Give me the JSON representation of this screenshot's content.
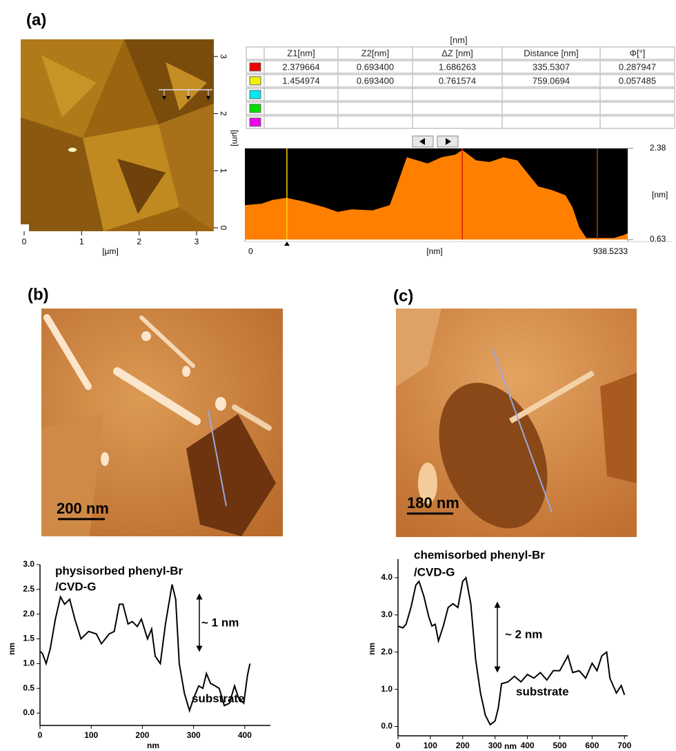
{
  "panels": {
    "a": "(a)",
    "b": "(b)",
    "c": "(c)"
  },
  "afm_image_a": {
    "xlim": [
      0,
      3.3
    ],
    "ylim": [
      0,
      3.3
    ],
    "xticks": [
      0,
      1,
      2,
      3
    ],
    "yticks": [
      0,
      1,
      2,
      3
    ],
    "xlabel": "[μm]",
    "ylabel": "[μm]"
  },
  "table": {
    "unit": "[nm]",
    "headers": [
      "Z1[nm]",
      "Z2[nm]",
      "ΔZ [nm]",
      "Distance [nm]",
      "Φ[°]"
    ],
    "rows": [
      [
        "2.379664",
        "0.693400",
        "1.686263",
        "335.5307",
        "0.287947"
      ],
      [
        "1.454974",
        "0.693400",
        "0.761574",
        "759.0694",
        "0.057485"
      ]
    ],
    "row_colors": [
      "#ee0000",
      "#f0f000",
      "#00e8f0",
      "#00dd00",
      "#ee00ee"
    ]
  },
  "images": {
    "b": {
      "scale_bar": "200 nm"
    },
    "c": {
      "scale_bar": "180 nm"
    }
  },
  "chart_data": [
    {
      "type": "area",
      "background": "#000000",
      "color": "#ff8000",
      "xlabel": "[nm]",
      "ylabel": "[nm]",
      "xlim": [
        0,
        938.5233
      ],
      "ylim": [
        0.63,
        2.38
      ],
      "xticks": [
        0,
        938.5233
      ],
      "yticks": [
        0.63,
        2.38
      ],
      "x": [
        0,
        42,
        68,
        102,
        144,
        195,
        228,
        262,
        313,
        355,
        372,
        397,
        423,
        448,
        482,
        516,
        533,
        567,
        600,
        634,
        668,
        685,
        719,
        753,
        786,
        803,
        820,
        837,
        871,
        905,
        930,
        938.5
      ],
      "values": [
        1.29,
        1.32,
        1.39,
        1.43,
        1.36,
        1.25,
        1.16,
        1.21,
        1.19,
        1.29,
        1.65,
        2.21,
        2.15,
        2.09,
        2.21,
        2.26,
        2.35,
        2.15,
        2.12,
        2.21,
        2.15,
        1.98,
        1.65,
        1.58,
        1.48,
        1.25,
        0.86,
        0.66,
        0.66,
        0.66,
        0.72,
        0.75
      ],
      "cursors": [
        {
          "x": 103,
          "color": "#ffd000"
        },
        {
          "x": 533,
          "color": "#e02000"
        },
        {
          "x": 864,
          "color": "#a04010"
        }
      ]
    },
    {
      "type": "line",
      "color": "#000000",
      "xlabel": "nm",
      "ylabel": "nm",
      "annotations": [
        "physisorbed phenyl-Br",
        "/CVD-G",
        "~ 1 nm",
        "substrate"
      ],
      "xlim": [
        0,
        450
      ],
      "ylim": [
        -0.25,
        3.0
      ],
      "xticks": [
        0,
        100,
        200,
        300,
        400
      ],
      "yticks": [
        {
          "value": 0,
          "label": "0.0"
        },
        {
          "value": 0.5,
          "label": "0.5"
        },
        {
          "value": 1,
          "label": "1.0"
        },
        {
          "value": 1.5,
          "label": "1.5"
        },
        {
          "value": 2,
          "label": "2.0"
        },
        {
          "value": 2.5,
          "label": "2.5"
        },
        {
          "value": 3,
          "label": "3.0"
        }
      ],
      "x": [
        0,
        5,
        12,
        20,
        30,
        40,
        48,
        58,
        68,
        80,
        95,
        110,
        120,
        135,
        145,
        155,
        162,
        172,
        180,
        190,
        198,
        210,
        218,
        225,
        235,
        245,
        258,
        265,
        272,
        282,
        292,
        300,
        310,
        318,
        325,
        333,
        342,
        350,
        360,
        370,
        380,
        388,
        398,
        405,
        410
      ],
      "values": [
        1.25,
        1.2,
        1.0,
        1.3,
        1.9,
        2.35,
        2.2,
        2.3,
        1.9,
        1.5,
        1.65,
        1.6,
        1.4,
        1.6,
        1.65,
        2.2,
        2.2,
        1.8,
        1.85,
        1.75,
        1.9,
        1.5,
        1.7,
        1.15,
        1.0,
        1.8,
        2.6,
        2.3,
        1.0,
        0.4,
        0.05,
        0.3,
        0.55,
        0.5,
        0.8,
        0.6,
        0.55,
        0.5,
        0.15,
        0.2,
        0.55,
        0.3,
        0.2,
        0.75,
        1.0
      ]
    },
    {
      "type": "line",
      "color": "#000000",
      "xlabel": "nm",
      "ylabel": "nm",
      "annotations": [
        "chemisorbed phenyl-Br",
        "/CVD-G",
        "~ 2 nm",
        "substrate"
      ],
      "xlim": [
        0,
        710
      ],
      "ylim": [
        -0.25,
        4.5
      ],
      "xticks": [
        0,
        100,
        200,
        300,
        400,
        500,
        600,
        700
      ],
      "yticks": [
        {
          "value": 0,
          "label": "0.0"
        },
        {
          "value": 1,
          "label": "1.0"
        },
        {
          "value": 2,
          "label": "2.0"
        },
        {
          "value": 3,
          "label": "3.0"
        },
        {
          "value": 4,
          "label": "4.0"
        }
      ],
      "x": [
        0,
        15,
        25,
        40,
        55,
        65,
        80,
        95,
        105,
        115,
        125,
        140,
        155,
        170,
        185,
        200,
        210,
        225,
        240,
        255,
        270,
        285,
        300,
        310,
        320,
        340,
        360,
        380,
        400,
        420,
        440,
        460,
        480,
        500,
        525,
        540,
        560,
        580,
        600,
        615,
        630,
        645,
        655,
        665,
        675,
        690,
        700
      ],
      "values": [
        2.7,
        2.65,
        2.75,
        3.2,
        3.8,
        3.9,
        3.5,
        2.95,
        2.7,
        2.75,
        2.3,
        2.7,
        3.2,
        3.3,
        3.2,
        3.9,
        4.0,
        3.3,
        1.8,
        0.9,
        0.3,
        0.05,
        0.15,
        0.5,
        1.15,
        1.2,
        1.35,
        1.2,
        1.4,
        1.3,
        1.45,
        1.25,
        1.5,
        1.5,
        1.9,
        1.45,
        1.5,
        1.3,
        1.7,
        1.5,
        1.9,
        2.0,
        1.3,
        1.1,
        0.9,
        1.1,
        0.85
      ]
    }
  ]
}
